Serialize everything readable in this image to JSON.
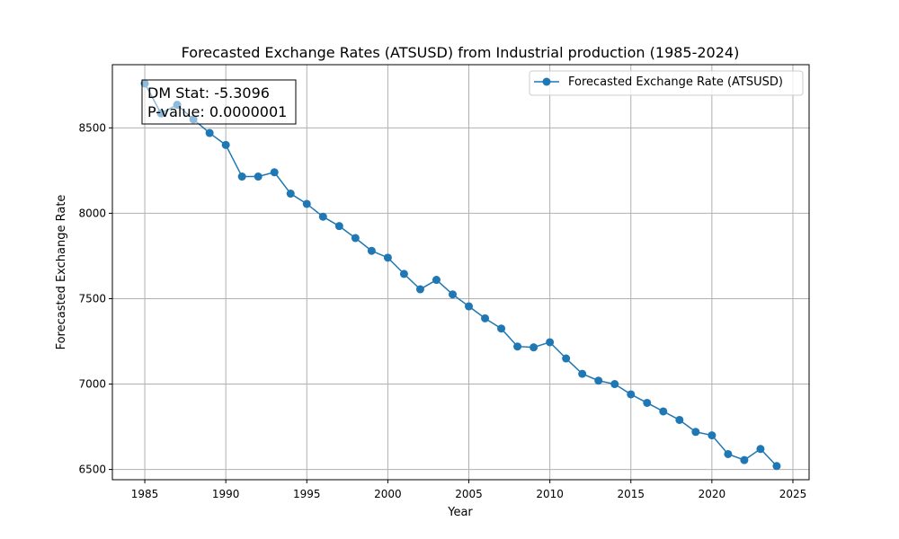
{
  "chart_data": {
    "type": "line",
    "title": "Forecasted Exchange Rates (ATSUSD) from Industrial production (1985-2024)",
    "xlabel": "Year",
    "ylabel": "Forecasted Exchange Rate",
    "xlim": [
      1983,
      2026
    ],
    "ylim": [
      6440,
      8870
    ],
    "xticks": [
      1985,
      1990,
      1995,
      2000,
      2005,
      2010,
      2015,
      2020,
      2025
    ],
    "yticks": [
      6500,
      7000,
      7500,
      8000,
      8500
    ],
    "grid": true,
    "legend_position": "top-right",
    "series": [
      {
        "name": "Forecasted Exchange Rate (ATSUSD)",
        "color": "#1f77b4",
        "marker": "circle",
        "x": [
          1985,
          1986,
          1987,
          1988,
          1989,
          1990,
          1991,
          1992,
          1993,
          1994,
          1995,
          1996,
          1997,
          1998,
          1999,
          2000,
          2001,
          2002,
          2003,
          2004,
          2005,
          2006,
          2007,
          2008,
          2009,
          2010,
          2011,
          2012,
          2013,
          2014,
          2015,
          2016,
          2017,
          2018,
          2019,
          2020,
          2021,
          2022,
          2023,
          2024
        ],
        "y": [
          8760,
          8585,
          8635,
          8550,
          8470,
          8400,
          8215,
          8215,
          8240,
          8115,
          8055,
          7980,
          7925,
          7855,
          7780,
          7740,
          7645,
          7555,
          7610,
          7525,
          7455,
          7385,
          7325,
          7220,
          7215,
          7245,
          7150,
          7060,
          7020,
          7000,
          6940,
          6890,
          6840,
          6790,
          6720,
          6700,
          6590,
          6555,
          6620,
          6520
        ]
      }
    ],
    "annotation": {
      "lines": [
        "DM Stat: -5.3096",
        "P-value: 0.0000001"
      ]
    }
  }
}
